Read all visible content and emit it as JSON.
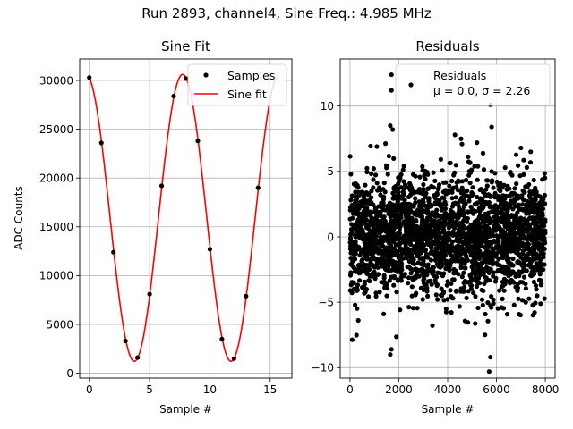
{
  "figure": {
    "title": "Run 2893, channel4, Sine Freq.: 4.985 MHz"
  },
  "chart_data": [
    {
      "type": "line",
      "title": "Sine Fit",
      "xlabel": "Sample #",
      "ylabel": "ADC Counts",
      "xlim": [
        -0.8,
        16.8
      ],
      "ylim": [
        -500,
        32200
      ],
      "xticks": [
        0,
        5,
        10,
        15
      ],
      "yticks": [
        0,
        5000,
        10000,
        15000,
        20000,
        25000,
        30000
      ],
      "grid": true,
      "legend_position": "top-right",
      "series": [
        {
          "name": "Samples",
          "style": "markers",
          "color": "#000000",
          "x": [
            0,
            1,
            2,
            3,
            4,
            5,
            6,
            7,
            8,
            9,
            10,
            11,
            12,
            13,
            14
          ],
          "y": [
            30300,
            23600,
            12400,
            3300,
            1600,
            8100,
            19200,
            28400,
            30200,
            23800,
            12700,
            3500,
            1500,
            7900,
            19000
          ]
        },
        {
          "name": "Sine fit",
          "style": "line",
          "color": "#ff0000",
          "model": {
            "offset": 15920,
            "amplitude": 14700,
            "period": 8.02,
            "peak_at": 7.74
          },
          "x_range": [
            0,
            15.6
          ]
        }
      ]
    },
    {
      "type": "scatter",
      "title": "Residuals",
      "xlabel": "Sample #",
      "ylabel": "",
      "xlim": [
        -400,
        8400
      ],
      "ylim": [
        -10.8,
        13.6
      ],
      "xticks": [
        0,
        2000,
        4000,
        6000,
        8000
      ],
      "yticks": [
        -10,
        -5,
        0,
        5,
        10
      ],
      "grid": true,
      "legend_position": "top-right",
      "legend_entry": {
        "name": "Residuals",
        "stats": "μ = 0.0, σ = 2.26"
      },
      "summary": {
        "mean": 0.0,
        "sigma": 2.26,
        "n_samples": 8000,
        "color": "#000000"
      },
      "notable_points": [
        {
          "x": 1700,
          "y": 12.4
        },
        {
          "x": 1700,
          "y": 11.2
        },
        {
          "x": 1650,
          "y": 8.5
        },
        {
          "x": 1750,
          "y": 8.2
        },
        {
          "x": 1700,
          "y": -8.6
        },
        {
          "x": 1650,
          "y": -9.0
        },
        {
          "x": 5750,
          "y": 10.1
        },
        {
          "x": 5800,
          "y": 8.4
        },
        {
          "x": 5750,
          "y": -9.2
        },
        {
          "x": 5700,
          "y": -10.3
        },
        {
          "x": 4300,
          "y": 7.8
        },
        {
          "x": 4550,
          "y": 7.5
        },
        {
          "x": 7000,
          "y": 6.8
        },
        {
          "x": 5200,
          "y": 7.2
        },
        {
          "x": 1100,
          "y": 6.9
        }
      ]
    }
  ]
}
